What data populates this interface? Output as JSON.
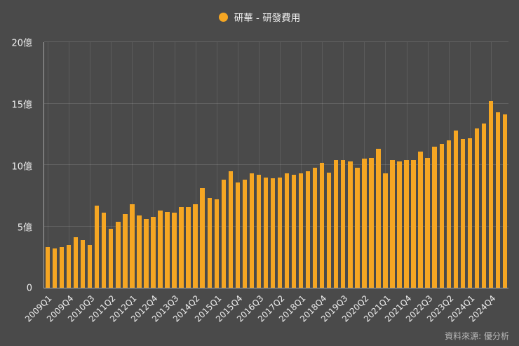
{
  "page": {
    "background": "#4A4A4A"
  },
  "legend": {
    "marker_color": "#F5A623",
    "label": "研華 - 研發費用"
  },
  "source": {
    "text": "資料來源: 優分析"
  },
  "chart_data": {
    "type": "bar",
    "title": "研華 - 研發費用",
    "unit": "億",
    "bar_color": "#F5A623",
    "ylim": [
      0,
      20
    ],
    "grid": true,
    "legend_position": "top-center",
    "y_ticks": [
      {
        "value": 0,
        "label": "0"
      },
      {
        "value": 5,
        "label": "5億"
      },
      {
        "value": 10,
        "label": "10億"
      },
      {
        "value": 15,
        "label": "15億"
      },
      {
        "value": 20,
        "label": "20億"
      }
    ],
    "x_tick_every": 3,
    "x_tick_labels": [
      "2009Q1",
      "2009Q4",
      "2010Q3",
      "2011Q2",
      "2012Q1",
      "2012Q4",
      "2013Q3",
      "2014Q2",
      "2015Q1",
      "2015Q4",
      "2016Q3",
      "2017Q2",
      "2018Q1",
      "2018Q4",
      "2019Q3",
      "2020Q2",
      "2021Q1",
      "2021Q4",
      "2022Q3",
      "2023Q2",
      "2024Q1",
      "2024Q4"
    ],
    "categories": [
      "2009Q1",
      "2009Q2",
      "2009Q3",
      "2009Q4",
      "2010Q1",
      "2010Q2",
      "2010Q3",
      "2010Q4",
      "2011Q1",
      "2011Q2",
      "2011Q3",
      "2011Q4",
      "2012Q1",
      "2012Q2",
      "2012Q3",
      "2012Q4",
      "2013Q1",
      "2013Q2",
      "2013Q3",
      "2013Q4",
      "2014Q1",
      "2014Q2",
      "2014Q3",
      "2014Q4",
      "2015Q1",
      "2015Q2",
      "2015Q3",
      "2015Q4",
      "2016Q1",
      "2016Q2",
      "2016Q3",
      "2016Q4",
      "2017Q1",
      "2017Q2",
      "2017Q3",
      "2017Q4",
      "2018Q1",
      "2018Q2",
      "2018Q3",
      "2018Q4",
      "2019Q1",
      "2019Q2",
      "2019Q3",
      "2019Q4",
      "2020Q1",
      "2020Q2",
      "2020Q3",
      "2020Q4",
      "2021Q1",
      "2021Q2",
      "2021Q3",
      "2021Q4",
      "2022Q1",
      "2022Q2",
      "2022Q3",
      "2022Q4",
      "2023Q1",
      "2023Q2",
      "2023Q3",
      "2023Q4",
      "2024Q1",
      "2024Q2",
      "2024Q3",
      "2024Q4",
      "2025Q1",
      "2025Q2"
    ],
    "values": [
      3.3,
      3.2,
      3.3,
      3.5,
      4.1,
      3.9,
      3.5,
      6.7,
      6.1,
      4.8,
      5.4,
      6.0,
      6.8,
      5.9,
      5.6,
      5.8,
      6.3,
      6.2,
      6.1,
      6.6,
      6.6,
      6.8,
      8.1,
      7.3,
      7.2,
      8.8,
      9.5,
      8.6,
      8.8,
      9.3,
      9.2,
      9.0,
      8.9,
      9.0,
      9.3,
      9.2,
      9.3,
      9.5,
      9.8,
      10.2,
      9.4,
      10.4,
      10.4,
      10.3,
      9.8,
      10.5,
      10.6,
      11.3,
      9.3,
      10.4,
      10.3,
      10.4,
      10.4,
      11.1,
      10.6,
      11.5,
      11.7,
      12.0,
      12.8,
      12.1,
      12.2,
      13.0,
      13.4,
      15.2,
      14.3,
      14.1
    ]
  }
}
